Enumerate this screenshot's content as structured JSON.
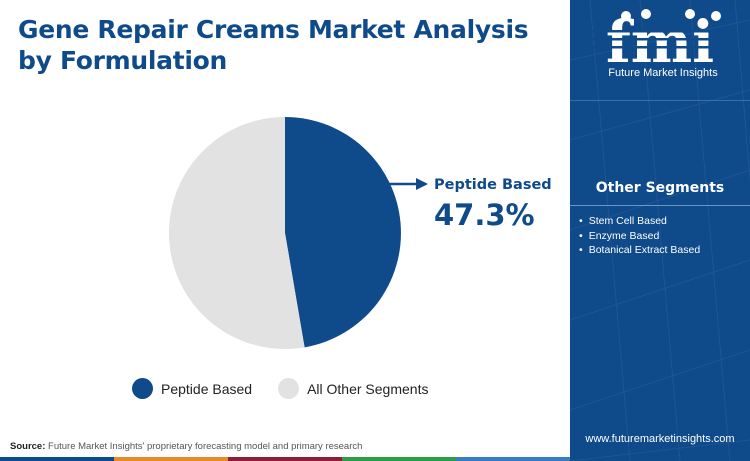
{
  "title": "Gene Repair Creams Market Analysis by Formulation",
  "brand": {
    "logo_text": "fmi",
    "name": "Future Market Insights",
    "website": "www.futuremarketinsights.com",
    "primary_color": "#0f4a8a"
  },
  "callout": {
    "label": "Peptide Based",
    "value": "47.3%"
  },
  "other_segments": {
    "heading": "Other Segments",
    "items": [
      "Stem Cell Based",
      "Enzyme Based",
      "Botanical Extract Based"
    ]
  },
  "source": {
    "label": "Source:",
    "text": "Future Market Insights' proprietary forecasting model and primary research"
  },
  "chart_data": {
    "type": "pie",
    "title": "Gene Repair Creams Market Analysis by Formulation",
    "start_angle_deg": 0,
    "direction": "clockwise",
    "slices": [
      {
        "label": "Peptide Based",
        "value": 47.3,
        "color": "#0f4a8a"
      },
      {
        "label": "All Other Segments",
        "value": 52.7,
        "color": "#e2e2e2"
      }
    ],
    "legend": [
      {
        "label": "Peptide Based",
        "color": "#0f4a8a"
      },
      {
        "label": "All Other Segments",
        "color": "#e2e2e2"
      }
    ],
    "legend_position": "bottom"
  }
}
